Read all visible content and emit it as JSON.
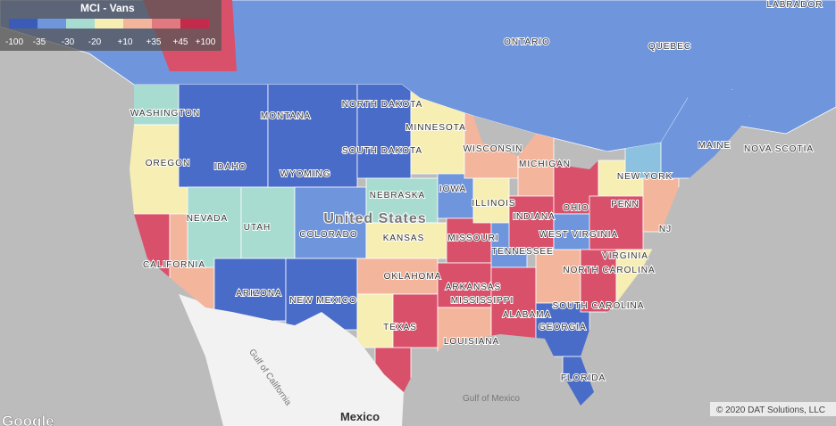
{
  "legend": {
    "title": "MCI - Vans",
    "labels": [
      "-100",
      "-35",
      "-30",
      "-20",
      "+10",
      "+35",
      "+45",
      "+100"
    ]
  },
  "map_labels": [
    "ONTARIO",
    "QUEBEC",
    "LABRADOR",
    "WASHINGTON",
    "MONTANA",
    "NORTH DAKOTA",
    "MINNESOTA",
    "OREGON",
    "IDAHO",
    "SOUTH DAKOTA",
    "WISCONSIN",
    "MICHIGAN",
    "WYOMING",
    "NEBRASKA",
    "IOWA",
    "ILLINOIS",
    "INDIANA",
    "OHIO",
    "PENN",
    "NEW YORK",
    "MAINE",
    "NOVA SCOTIA",
    "NEVADA",
    "UTAH",
    "COLORADO",
    "United States",
    "KANSAS",
    "MISSOURI",
    "WEST VIRGINIA",
    "VIRGINIA",
    "NJ",
    "CALIFORNIA",
    "ARIZONA",
    "NEW MEXICO",
    "OKLAHOMA",
    "ARKANSAS",
    "TENNESSEE",
    "NORTH CAROLINA",
    "SOUTH CAROLINA",
    "TEXAS",
    "LOUISIANA",
    "MISSISSIPPI",
    "ALABAMA",
    "GEORGIA",
    "FLORIDA",
    "Mexico",
    "Gulf of Mexico",
    "Gulf of California"
  ],
  "attribution": "© 2020 DAT Solutions, LLC",
  "logo": "Google"
}
